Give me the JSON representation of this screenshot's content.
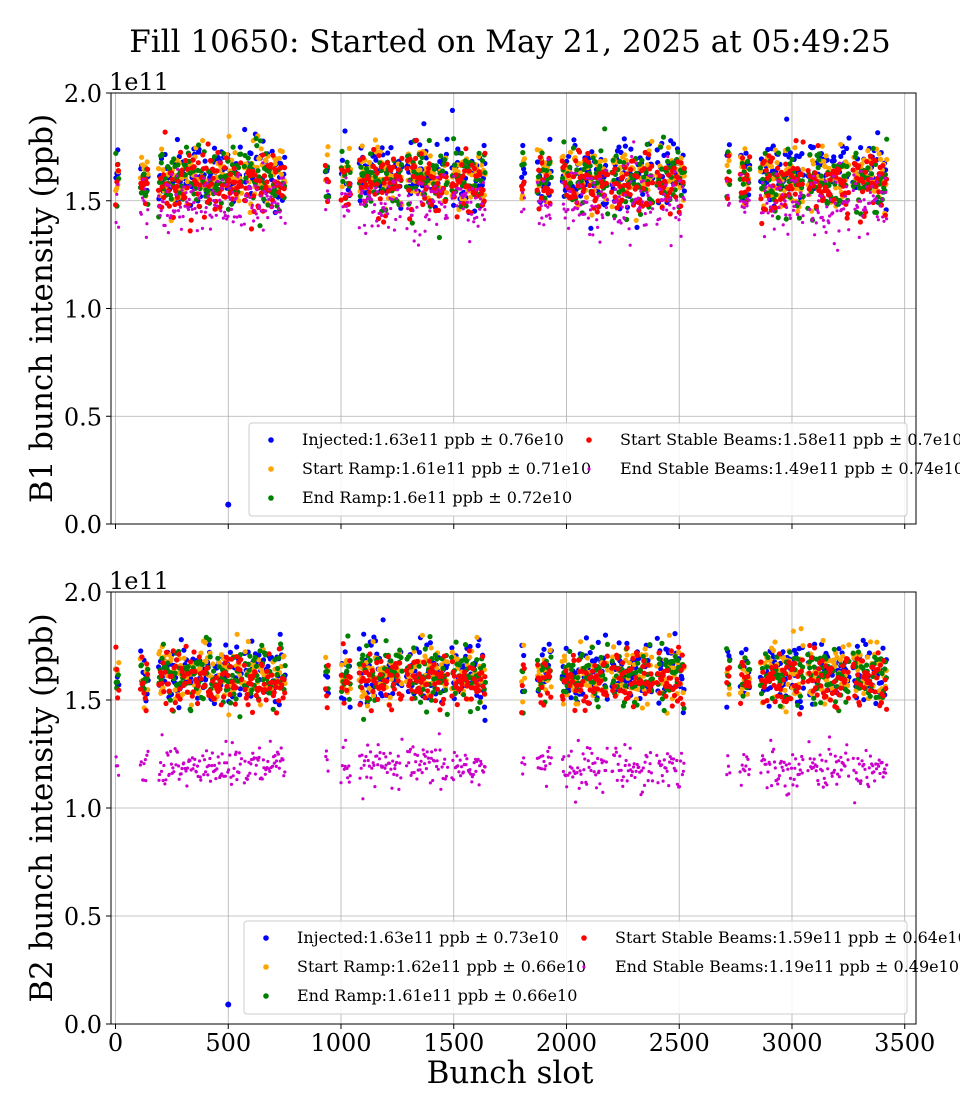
{
  "figure": {
    "title": "Fill 10650: Started on May 21, 2025 at 05:49:25",
    "xlabel": "Bunch slot"
  },
  "chart_data": [
    {
      "type": "scatter",
      "ylabel": "B1 bunch intensity (ppb)",
      "y_multiplier": "1e11",
      "xlim": [
        -20,
        3550
      ],
      "ylim": [
        0.0,
        2.0
      ],
      "grid": true,
      "legend_position": "lower-right",
      "x_ticks": [
        "0",
        "500",
        "1000",
        "1500",
        "2000",
        "2500",
        "3000",
        "3500"
      ],
      "y_ticks": [
        "0.0",
        "0.5",
        "1.0",
        "1.5",
        "2.0"
      ],
      "bunch_groups": [
        [
          0,
          12
        ],
        [
          110,
          145
        ],
        [
          190,
          380
        ],
        [
          385,
          560
        ],
        [
          570,
          750
        ],
        [
          930,
          945
        ],
        [
          1000,
          1040
        ],
        [
          1080,
          1270
        ],
        [
          1290,
          1470
        ],
        [
          1490,
          1640
        ],
        [
          1800,
          1815
        ],
        [
          1870,
          1930
        ],
        [
          1980,
          2180
        ],
        [
          2200,
          2380
        ],
        [
          2400,
          2520
        ],
        [
          2710,
          2725
        ],
        [
          2770,
          2810
        ],
        [
          2860,
          3050
        ],
        [
          3070,
          3250
        ],
        [
          3270,
          3420
        ]
      ],
      "isolated_points": [
        {
          "series": "Injected",
          "x": 500,
          "y": 0.09
        }
      ],
      "series": [
        {
          "name": "Injected",
          "mean_e11": 1.63,
          "std_e10": 0.76,
          "color": "#0000ff",
          "label": "Injected:1.63e11 ppb ± 0.76e10"
        },
        {
          "name": "Start Ramp",
          "mean_e11": 1.61,
          "std_e10": 0.71,
          "color": "#ffa500",
          "label": "Start Ramp:1.61e11 ppb ± 0.71e10"
        },
        {
          "name": "End Ramp",
          "mean_e11": 1.6,
          "std_e10": 0.72,
          "color": "#008000",
          "label": "End Ramp:1.6e11 ppb ± 0.72e10"
        },
        {
          "name": "Start Stable Beams",
          "mean_e11": 1.58,
          "std_e10": 0.7,
          "color": "#ff0000",
          "label": "Start Stable Beams:1.58e11 ppb ± 0.7e10"
        },
        {
          "name": "End Stable Beams",
          "mean_e11": 1.49,
          "std_e10": 0.74,
          "color": "#cc00cc",
          "label": "End Stable Beams:1.49e11 ppb ± 0.74e10"
        }
      ]
    },
    {
      "type": "scatter",
      "ylabel": "B2 bunch intensity (ppb)",
      "y_multiplier": "1e11",
      "xlim": [
        -20,
        3550
      ],
      "ylim": [
        0.0,
        2.0
      ],
      "grid": true,
      "legend_position": "lower-right",
      "x_ticks": [
        "0",
        "500",
        "1000",
        "1500",
        "2000",
        "2500",
        "3000",
        "3500"
      ],
      "y_ticks": [
        "0.0",
        "0.5",
        "1.0",
        "1.5",
        "2.0"
      ],
      "bunch_groups": [
        [
          0,
          12
        ],
        [
          110,
          145
        ],
        [
          190,
          380
        ],
        [
          385,
          560
        ],
        [
          570,
          750
        ],
        [
          930,
          945
        ],
        [
          1000,
          1040
        ],
        [
          1080,
          1270
        ],
        [
          1290,
          1470
        ],
        [
          1490,
          1640
        ],
        [
          1800,
          1815
        ],
        [
          1870,
          1930
        ],
        [
          1980,
          2180
        ],
        [
          2200,
          2380
        ],
        [
          2400,
          2520
        ],
        [
          2710,
          2725
        ],
        [
          2770,
          2810
        ],
        [
          2860,
          3050
        ],
        [
          3070,
          3250
        ],
        [
          3270,
          3420
        ]
      ],
      "isolated_points": [
        {
          "series": "Injected",
          "x": 500,
          "y": 0.09
        }
      ],
      "series": [
        {
          "name": "Injected",
          "mean_e11": 1.63,
          "std_e10": 0.73,
          "color": "#0000ff",
          "label": "Injected:1.63e11 ppb ± 0.73e10"
        },
        {
          "name": "Start Ramp",
          "mean_e11": 1.62,
          "std_e10": 0.66,
          "color": "#ffa500",
          "label": "Start Ramp:1.62e11 ppb ± 0.66e10"
        },
        {
          "name": "End Ramp",
          "mean_e11": 1.61,
          "std_e10": 0.66,
          "color": "#008000",
          "label": "End Ramp:1.61e11 ppb ± 0.66e10"
        },
        {
          "name": "Start Stable Beams",
          "mean_e11": 1.59,
          "std_e10": 0.64,
          "color": "#ff0000",
          "label": "Start Stable Beams:1.59e11 ppb ± 0.64e10"
        },
        {
          "name": "End Stable Beams",
          "mean_e11": 1.19,
          "std_e10": 0.49,
          "color": "#cc00cc",
          "label": "End Stable Beams:1.19e11 ppb ± 0.49e10"
        }
      ]
    }
  ]
}
